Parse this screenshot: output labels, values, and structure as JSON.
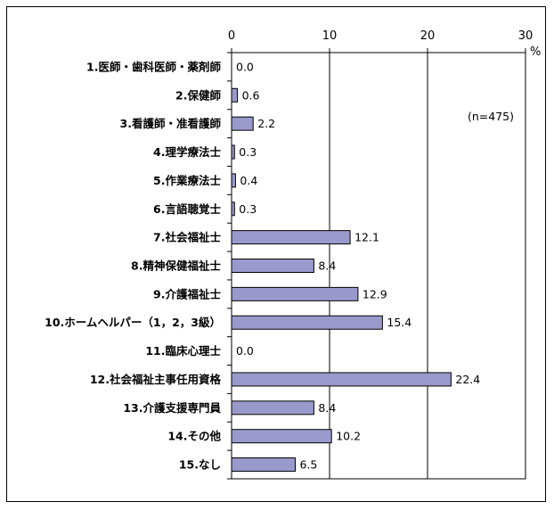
{
  "chart_data": {
    "type": "bar",
    "orientation": "horizontal",
    "unit_label": "%",
    "sample_note": "(n=475)",
    "xlim": [
      0,
      30
    ],
    "xticks": [
      0,
      10,
      20,
      30
    ],
    "grid": true,
    "bar_color": "#9999cc",
    "categories": [
      "1.医師・歯科医師・薬剤師",
      "2.保健師",
      "3.看護師・准看護師",
      "4.理学療法士",
      "5.作業療法士",
      "6.言語聴覚士",
      "7.社会福祉士",
      "8.精神保健福祉士",
      "9.介護福祉士",
      "10.ホームヘルパー（1，2，3級）",
      "11.臨床心理士",
      "12.社会福祉主事任用資格",
      "13.介護支援専門員",
      "14.その他",
      "15.なし"
    ],
    "values": [
      0.0,
      0.6,
      2.2,
      0.3,
      0.4,
      0.3,
      12.1,
      8.4,
      12.9,
      15.4,
      0.0,
      22.4,
      8.4,
      10.2,
      6.5
    ]
  }
}
